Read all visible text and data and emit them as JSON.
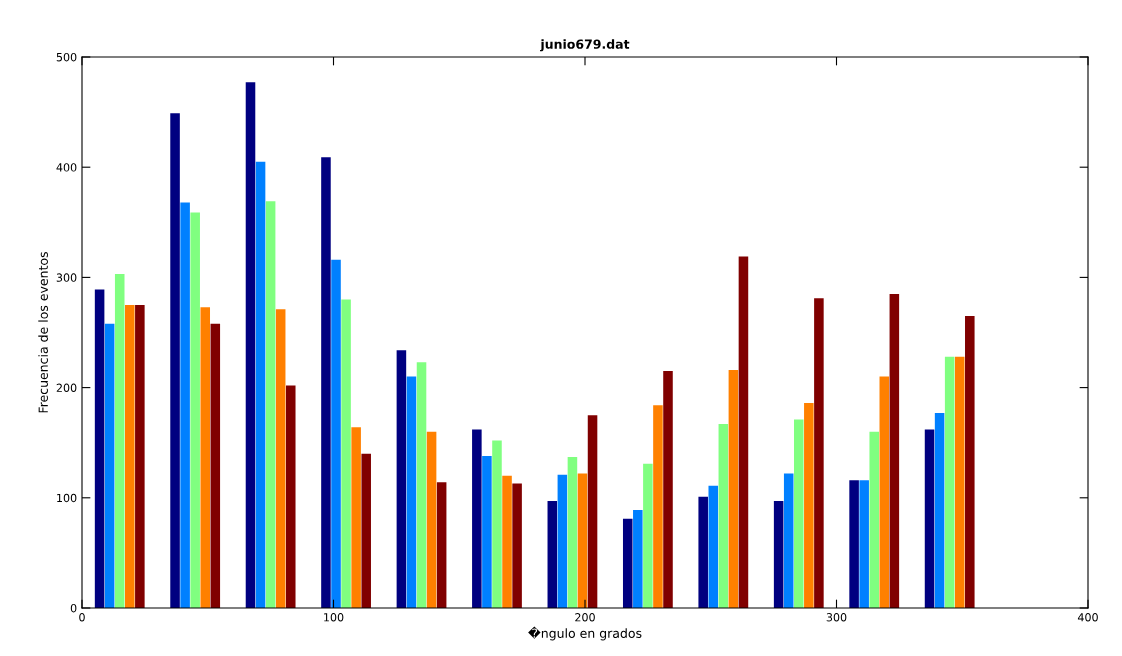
{
  "chart_data": {
    "type": "bar",
    "title": "junio679.dat",
    "xlabel": "�ngulo en grados",
    "ylabel": "Frecuencia de los eventos",
    "x": [
      15,
      45,
      75,
      105,
      135,
      165,
      195,
      225,
      255,
      285,
      315,
      345
    ],
    "series": [
      {
        "color": "#000080",
        "values": [
          289,
          449,
          477,
          409,
          234,
          162,
          97,
          81,
          101,
          97,
          116,
          162
        ]
      },
      {
        "color": "#0080ff",
        "values": [
          258,
          368,
          405,
          316,
          210,
          138,
          121,
          89,
          111,
          122,
          116,
          177
        ]
      },
      {
        "color": "#80ff80",
        "values": [
          303,
          359,
          369,
          280,
          223,
          152,
          137,
          131,
          167,
          171,
          160,
          228
        ]
      },
      {
        "color": "#ff8000",
        "values": [
          275,
          273,
          271,
          164,
          160,
          120,
          122,
          184,
          216,
          186,
          210,
          228
        ]
      },
      {
        "color": "#800000",
        "values": [
          275,
          258,
          202,
          140,
          114,
          113,
          175,
          215,
          319,
          281,
          285,
          265
        ]
      }
    ],
    "xlim": [
      0,
      400
    ],
    "xticks": [
      0,
      100,
      200,
      300,
      400
    ],
    "ylim": [
      0,
      500
    ],
    "yticks": [
      0,
      100,
      200,
      300,
      400,
      500
    ],
    "grid": false,
    "legend": false
  }
}
